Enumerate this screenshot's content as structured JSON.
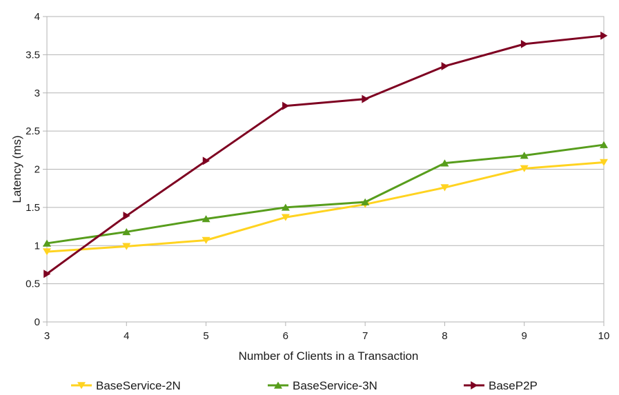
{
  "chart_data": {
    "type": "line",
    "title": "",
    "xlabel": "Number of Clients in a Transaction",
    "ylabel": "Latency (ms)",
    "x": [
      3,
      4,
      5,
      6,
      7,
      8,
      9,
      10
    ],
    "xlim": [
      3,
      10
    ],
    "ylim": [
      0,
      4
    ],
    "yticks": [
      "0",
      "0.5",
      "1",
      "1.5",
      "2",
      "2.5",
      "3",
      "3.5",
      "4"
    ],
    "xticks": [
      "3",
      "4",
      "5",
      "6",
      "7",
      "8",
      "9",
      "10"
    ],
    "grid": "horizontal",
    "legend_position": "bottom",
    "series": [
      {
        "name": "BaseService-2N",
        "color": "#ffd320",
        "marker": "triangle-down",
        "values": [
          0.92,
          0.99,
          1.07,
          1.37,
          1.54,
          1.76,
          2.01,
          2.09
        ]
      },
      {
        "name": "BaseService-3N",
        "color": "#579d1c",
        "marker": "triangle-up",
        "values": [
          1.03,
          1.18,
          1.35,
          1.5,
          1.57,
          2.08,
          2.18,
          2.32
        ]
      },
      {
        "name": "BaseP2P",
        "color": "#7e0021",
        "marker": "triangle-right",
        "values": [
          0.63,
          1.39,
          2.11,
          2.83,
          2.92,
          3.35,
          3.64,
          3.75
        ]
      }
    ]
  }
}
